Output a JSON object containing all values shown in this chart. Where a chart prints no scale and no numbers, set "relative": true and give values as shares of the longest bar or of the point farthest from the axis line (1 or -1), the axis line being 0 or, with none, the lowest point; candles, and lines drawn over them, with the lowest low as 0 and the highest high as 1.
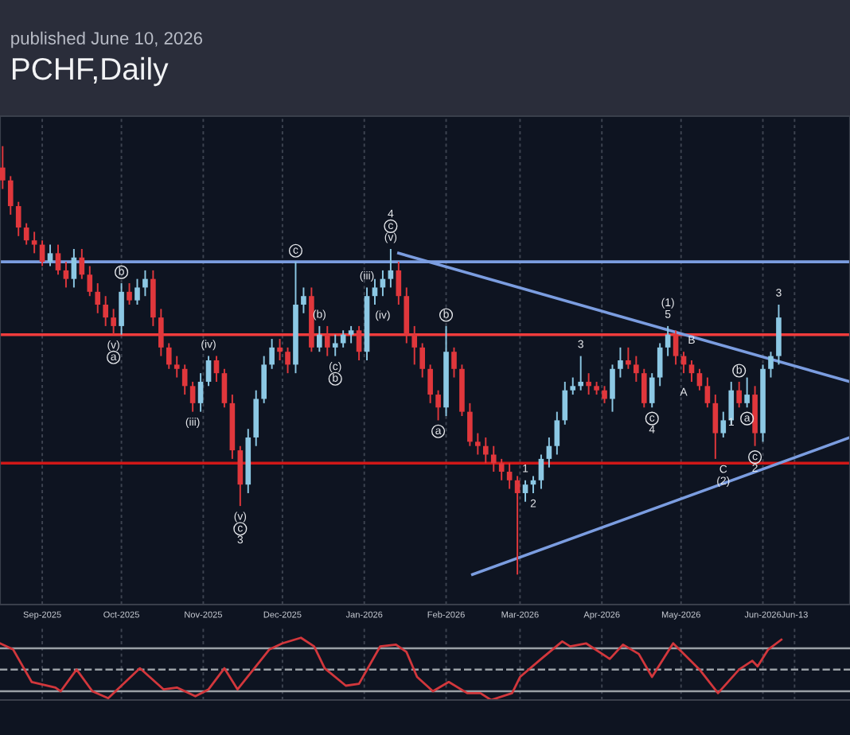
{
  "chart_data": [
    {
      "type": "candlestick",
      "title": "PCHF,Daily",
      "subtitle": "published June 10, 2026",
      "relative": true,
      "x": [
        "2025-08-17",
        "2025-08-20",
        "2025-08-23",
        "2025-08-26",
        "2025-08-29",
        "2025-09-01",
        "2025-09-04",
        "2025-09-07",
        "2025-09-10",
        "2025-09-13",
        "2025-09-16",
        "2025-09-19",
        "2025-09-22",
        "2025-09-25",
        "2025-09-28",
        "2025-10-01",
        "2025-10-04",
        "2025-10-07",
        "2025-10-10",
        "2025-10-13",
        "2025-10-16",
        "2025-10-19",
        "2025-10-22",
        "2025-10-25",
        "2025-10-28",
        "2025-10-31",
        "2025-11-03",
        "2025-11-06",
        "2025-11-09",
        "2025-11-12",
        "2025-11-15",
        "2025-11-18",
        "2025-11-21",
        "2025-11-24",
        "2025-11-27",
        "2025-11-30",
        "2025-12-03",
        "2025-12-06",
        "2025-12-09",
        "2025-12-12",
        "2025-12-15",
        "2025-12-18",
        "2025-12-21",
        "2025-12-24",
        "2025-12-27",
        "2025-12-30",
        "2026-01-02",
        "2026-01-05",
        "2026-01-08",
        "2026-01-11",
        "2026-01-14",
        "2026-01-17",
        "2026-01-20",
        "2026-01-23",
        "2026-01-26",
        "2026-01-29",
        "2026-02-01",
        "2026-02-04",
        "2026-02-07",
        "2026-02-10",
        "2026-02-13",
        "2026-02-16",
        "2026-02-19",
        "2026-02-22",
        "2026-02-25",
        "2026-02-28",
        "2026-03-03",
        "2026-03-06",
        "2026-03-09",
        "2026-03-12",
        "2026-03-15",
        "2026-03-18",
        "2026-03-21",
        "2026-03-24",
        "2026-03-27",
        "2026-03-30",
        "2026-04-02",
        "2026-04-05",
        "2026-04-08",
        "2026-04-11",
        "2026-04-14",
        "2026-04-17",
        "2026-04-20",
        "2026-04-23",
        "2026-04-26",
        "2026-04-29",
        "2026-05-02",
        "2026-05-05",
        "2026-05-08",
        "2026-05-11",
        "2026-05-14",
        "2026-05-17",
        "2026-05-20",
        "2026-05-23",
        "2026-05-26",
        "2026-05-29",
        "2026-06-01",
        "2026-06-04",
        "2026-06-07"
      ],
      "ohlc": [
        [
          0.95,
          1.0,
          0.9,
          0.92
        ],
        [
          0.92,
          0.93,
          0.84,
          0.86
        ],
        [
          0.86,
          0.87,
          0.79,
          0.81
        ],
        [
          0.81,
          0.82,
          0.77,
          0.78
        ],
        [
          0.78,
          0.8,
          0.75,
          0.77
        ],
        [
          0.77,
          0.78,
          0.72,
          0.73
        ],
        [
          0.73,
          0.77,
          0.72,
          0.75
        ],
        [
          0.75,
          0.77,
          0.7,
          0.71
        ],
        [
          0.71,
          0.73,
          0.67,
          0.69
        ],
        [
          0.69,
          0.76,
          0.67,
          0.74
        ],
        [
          0.74,
          0.76,
          0.69,
          0.7
        ],
        [
          0.7,
          0.72,
          0.65,
          0.66
        ],
        [
          0.66,
          0.68,
          0.61,
          0.63
        ],
        [
          0.63,
          0.65,
          0.58,
          0.6
        ],
        [
          0.6,
          0.62,
          0.56,
          0.58
        ],
        [
          0.58,
          0.68,
          0.56,
          0.66
        ],
        [
          0.66,
          0.68,
          0.63,
          0.64
        ],
        [
          0.64,
          0.69,
          0.63,
          0.67
        ],
        [
          0.67,
          0.71,
          0.65,
          0.69
        ],
        [
          0.69,
          0.71,
          0.58,
          0.6
        ],
        [
          0.6,
          0.62,
          0.51,
          0.53
        ],
        [
          0.53,
          0.54,
          0.48,
          0.49
        ],
        [
          0.49,
          0.51,
          0.46,
          0.48
        ],
        [
          0.48,
          0.49,
          0.42,
          0.44
        ],
        [
          0.44,
          0.45,
          0.38,
          0.4
        ],
        [
          0.4,
          0.47,
          0.38,
          0.45
        ],
        [
          0.45,
          0.51,
          0.44,
          0.5
        ],
        [
          0.5,
          0.51,
          0.45,
          0.47
        ],
        [
          0.47,
          0.48,
          0.39,
          0.4
        ],
        [
          0.4,
          0.42,
          0.27,
          0.29
        ],
        [
          0.29,
          0.3,
          0.16,
          0.21
        ],
        [
          0.21,
          0.34,
          0.19,
          0.32
        ],
        [
          0.32,
          0.43,
          0.3,
          0.41
        ],
        [
          0.41,
          0.51,
          0.4,
          0.49
        ],
        [
          0.49,
          0.55,
          0.48,
          0.53
        ],
        [
          0.53,
          0.55,
          0.5,
          0.52
        ],
        [
          0.52,
          0.53,
          0.47,
          0.49
        ],
        [
          0.49,
          0.73,
          0.47,
          0.63
        ],
        [
          0.63,
          0.67,
          0.61,
          0.65
        ],
        [
          0.65,
          0.67,
          0.52,
          0.53
        ],
        [
          0.53,
          0.58,
          0.52,
          0.56
        ],
        [
          0.56,
          0.58,
          0.51,
          0.53
        ],
        [
          0.53,
          0.56,
          0.51,
          0.54
        ],
        [
          0.54,
          0.57,
          0.53,
          0.56
        ],
        [
          0.56,
          0.58,
          0.54,
          0.57
        ],
        [
          0.57,
          0.58,
          0.5,
          0.52
        ],
        [
          0.52,
          0.67,
          0.5,
          0.65
        ],
        [
          0.65,
          0.69,
          0.63,
          0.67
        ],
        [
          0.67,
          0.71,
          0.65,
          0.69
        ],
        [
          0.69,
          0.76,
          0.67,
          0.71
        ],
        [
          0.71,
          0.73,
          0.63,
          0.65
        ],
        [
          0.65,
          0.67,
          0.54,
          0.56
        ],
        [
          0.56,
          0.58,
          0.49,
          0.53
        ],
        [
          0.53,
          0.54,
          0.46,
          0.48
        ],
        [
          0.48,
          0.49,
          0.4,
          0.42
        ],
        [
          0.42,
          0.43,
          0.36,
          0.39
        ],
        [
          0.39,
          0.58,
          0.37,
          0.52
        ],
        [
          0.52,
          0.53,
          0.46,
          0.48
        ],
        [
          0.48,
          0.49,
          0.37,
          0.38
        ],
        [
          0.38,
          0.4,
          0.3,
          0.31
        ],
        [
          0.31,
          0.33,
          0.28,
          0.3
        ],
        [
          0.3,
          0.32,
          0.26,
          0.28
        ],
        [
          0.28,
          0.3,
          0.24,
          0.26
        ],
        [
          0.26,
          0.27,
          0.22,
          0.24
        ],
        [
          0.24,
          0.26,
          0.2,
          0.22
        ],
        [
          0.22,
          0.23,
          0.0,
          0.19
        ],
        [
          0.19,
          0.22,
          0.17,
          0.21
        ],
        [
          0.21,
          0.23,
          0.19,
          0.22
        ],
        [
          0.22,
          0.28,
          0.2,
          0.27
        ],
        [
          0.27,
          0.32,
          0.25,
          0.3
        ],
        [
          0.3,
          0.38,
          0.28,
          0.36
        ],
        [
          0.36,
          0.45,
          0.35,
          0.43
        ],
        [
          0.43,
          0.46,
          0.42,
          0.44
        ],
        [
          0.44,
          0.51,
          0.43,
          0.45
        ],
        [
          0.45,
          0.47,
          0.42,
          0.44
        ],
        [
          0.44,
          0.45,
          0.42,
          0.43
        ],
        [
          0.43,
          0.44,
          0.4,
          0.41
        ],
        [
          0.41,
          0.49,
          0.38,
          0.48
        ],
        [
          0.48,
          0.53,
          0.46,
          0.5
        ],
        [
          0.5,
          0.53,
          0.48,
          0.49
        ],
        [
          0.49,
          0.51,
          0.45,
          0.47
        ],
        [
          0.47,
          0.48,
          0.39,
          0.4
        ],
        [
          0.4,
          0.47,
          0.39,
          0.46
        ],
        [
          0.46,
          0.54,
          0.44,
          0.53
        ],
        [
          0.53,
          0.58,
          0.51,
          0.56
        ],
        [
          0.56,
          0.57,
          0.49,
          0.51
        ],
        [
          0.51,
          0.52,
          0.47,
          0.49
        ],
        [
          0.49,
          0.5,
          0.45,
          0.47
        ],
        [
          0.47,
          0.48,
          0.43,
          0.44
        ],
        [
          0.44,
          0.46,
          0.39,
          0.4
        ],
        [
          0.4,
          0.42,
          0.27,
          0.33
        ],
        [
          0.33,
          0.38,
          0.32,
          0.36
        ],
        [
          0.36,
          0.45,
          0.35,
          0.43
        ],
        [
          0.43,
          0.45,
          0.39,
          0.4
        ],
        [
          0.4,
          0.46,
          0.39,
          0.42
        ],
        [
          0.42,
          0.44,
          0.3,
          0.33
        ],
        [
          0.33,
          0.49,
          0.31,
          0.48
        ],
        [
          0.48,
          0.52,
          0.46,
          0.51
        ],
        [
          0.51,
          0.63,
          0.49,
          0.6
        ]
      ],
      "series": [
        {
          "type": "line",
          "color": "#7b9de0",
          "x": [
            "2026-01-14",
            "2026-07-04"
          ],
          "values": [
            0.75,
            0.45
          ]
        },
        {
          "type": "line",
          "color": "#7b9de0",
          "x": [
            "2026-02-11",
            "2026-07-04"
          ],
          "values": [
            0.0,
            0.32
          ]
        }
      ],
      "ref_lines": [
        {
          "axis": "y",
          "value": 0.73,
          "color": "#7b9de0"
        },
        {
          "axis": "y",
          "value": 0.56,
          "color": "#f03c3c"
        },
        {
          "axis": "y",
          "value": 0.26,
          "color": "#d01818"
        }
      ],
      "annotations": [
        {
          "text": "(v)",
          "x": "2025-11-15",
          "y": 0.16
        },
        {
          "text": "c",
          "x": "2025-11-15",
          "y": 0.16
        },
        {
          "text": "3",
          "x": "2025-11-15",
          "y": 0.16
        },
        {
          "text": "(iii)",
          "x": "2025-10-28",
          "y": 0.38
        },
        {
          "text": "(iv)",
          "x": "2025-11-03",
          "y": 0.51
        },
        {
          "text": "(v)",
          "x": "2025-09-28",
          "y": 0.56
        },
        {
          "text": "a",
          "x": "2025-09-28",
          "y": 0.56
        },
        {
          "text": "b",
          "x": "2025-10-01",
          "y": 0.68
        },
        {
          "text": "c",
          "x": "2025-12-06",
          "y": 0.73
        },
        {
          "text": "(b)",
          "x": "2025-12-15",
          "y": 0.58
        },
        {
          "text": "(c)",
          "x": "2025-12-21",
          "y": 0.51
        },
        {
          "text": "b",
          "x": "2025-12-21",
          "y": 0.51
        },
        {
          "text": "(iii)",
          "x": "2026-01-02",
          "y": 0.67
        },
        {
          "text": "(iv)",
          "x": "2026-01-08",
          "y": 0.63
        },
        {
          "text": "(v)",
          "x": "2026-01-11",
          "y": 0.76
        },
        {
          "text": "c",
          "x": "2026-01-11",
          "y": 0.76
        },
        {
          "text": "4",
          "x": "2026-01-11",
          "y": 0.76
        },
        {
          "text": "b",
          "x": "2026-02-01",
          "y": 0.58
        },
        {
          "text": "a",
          "x": "2026-01-29",
          "y": 0.36
        },
        {
          "text": "1",
          "x": "2026-03-03",
          "y": 0.22
        },
        {
          "text": "2",
          "x": "2026-03-06",
          "y": 0.19
        },
        {
          "text": "3",
          "x": "2026-03-24",
          "y": 0.51
        },
        {
          "text": "c",
          "x": "2026-04-20",
          "y": 0.39
        },
        {
          "text": "4",
          "x": "2026-04-20",
          "y": 0.39
        },
        {
          "text": "5",
          "x": "2026-04-26",
          "y": 0.58
        },
        {
          "text": "(1)",
          "x": "2026-04-26",
          "y": 0.58
        },
        {
          "text": "A",
          "x": "2026-05-02",
          "y": 0.45
        },
        {
          "text": "B",
          "x": "2026-05-05",
          "y": 0.52
        },
        {
          "text": "C",
          "x": "2026-05-17",
          "y": 0.27
        },
        {
          "text": "(2)",
          "x": "2026-05-17",
          "y": 0.27
        },
        {
          "text": "1",
          "x": "2026-05-20",
          "y": 0.38
        },
        {
          "text": "b",
          "x": "2026-05-23",
          "y": 0.45
        },
        {
          "text": "a",
          "x": "2026-05-26",
          "y": 0.39
        },
        {
          "text": "c",
          "x": "2026-05-29",
          "y": 0.3
        },
        {
          "text": "2",
          "x": "2026-05-29",
          "y": 0.3
        },
        {
          "text": "3",
          "x": "2026-06-07",
          "y": 0.63
        }
      ],
      "xlim": [
        "2025-08-16",
        "2026-07-04"
      ],
      "xticks": [
        {
          "value": "2025-09-01",
          "label": "Sep-2025"
        },
        {
          "value": "2025-10-01",
          "label": "Oct-2025"
        },
        {
          "value": "2025-11-01",
          "label": "Nov-2025"
        },
        {
          "value": "2025-12-01",
          "label": "Dec-2025"
        },
        {
          "value": "2026-01-01",
          "label": "Jan-2026"
        },
        {
          "value": "2026-02-01",
          "label": "Feb-2026"
        },
        {
          "value": "2026-03-01",
          "label": "Mar-2026"
        },
        {
          "value": "2026-04-01",
          "label": "Apr-2026"
        },
        {
          "value": "2026-05-01",
          "label": "May-2026"
        },
        {
          "value": "2026-06-01",
          "label": "Jun-2026"
        },
        {
          "value": "2026-06-13",
          "label": "Jun-13"
        }
      ],
      "grid": "x"
    },
    {
      "type": "line",
      "relative": true,
      "grid": "x",
      "xlim": [
        "2025-08-16",
        "2026-07-04"
      ],
      "series": [
        {
          "color": "#d2373c",
          "x": [
            "2025-08-16",
            "2025-08-21",
            "2025-08-28",
            "2025-09-06",
            "2025-09-08",
            "2025-09-14",
            "2025-09-20",
            "2025-09-26",
            "2025-10-08",
            "2025-10-17",
            "2025-10-22",
            "2025-10-29",
            "2025-11-03",
            "2025-11-09",
            "2025-11-14",
            "2025-11-26",
            "2025-12-01",
            "2025-12-08",
            "2025-12-13",
            "2025-12-17",
            "2025-12-25",
            "2025-12-30",
            "2026-01-07",
            "2026-01-13",
            "2026-01-17",
            "2026-01-21",
            "2026-01-27",
            "2026-02-02",
            "2026-02-09",
            "2026-02-14",
            "2026-02-18",
            "2026-02-26",
            "2026-03-01",
            "2026-03-09",
            "2026-03-17",
            "2026-03-20",
            "2026-03-26",
            "2026-04-04",
            "2026-04-09",
            "2026-04-15",
            "2026-04-20",
            "2026-04-28",
            "2026-05-08",
            "2026-05-15",
            "2026-05-23",
            "2026-05-28",
            "2026-05-30",
            "2026-06-03",
            "2026-06-08"
          ],
          "values": [
            0.91,
            0.81,
            0.29,
            0.2,
            0.14,
            0.49,
            0.14,
            0.03,
            0.51,
            0.17,
            0.2,
            0.06,
            0.17,
            0.51,
            0.17,
            0.81,
            0.91,
            1.0,
            0.86,
            0.51,
            0.23,
            0.26,
            0.86,
            0.89,
            0.77,
            0.37,
            0.14,
            0.29,
            0.11,
            0.11,
            0.0,
            0.11,
            0.37,
            0.66,
            0.94,
            0.86,
            0.91,
            0.66,
            0.89,
            0.74,
            0.37,
            0.91,
            0.49,
            0.11,
            0.49,
            0.63,
            0.54,
            0.81,
            0.97
          ]
        }
      ],
      "ref_lines": [
        {
          "axis": "y",
          "value": 0.83,
          "color": "#9aa0a6",
          "line_style": "solid"
        },
        {
          "axis": "y",
          "value": 0.49,
          "color": "#9aa0a6",
          "line_style": "dashed"
        },
        {
          "axis": "y",
          "value": 0.14,
          "color": "#9aa0a6",
          "line_style": "solid"
        }
      ]
    }
  ]
}
